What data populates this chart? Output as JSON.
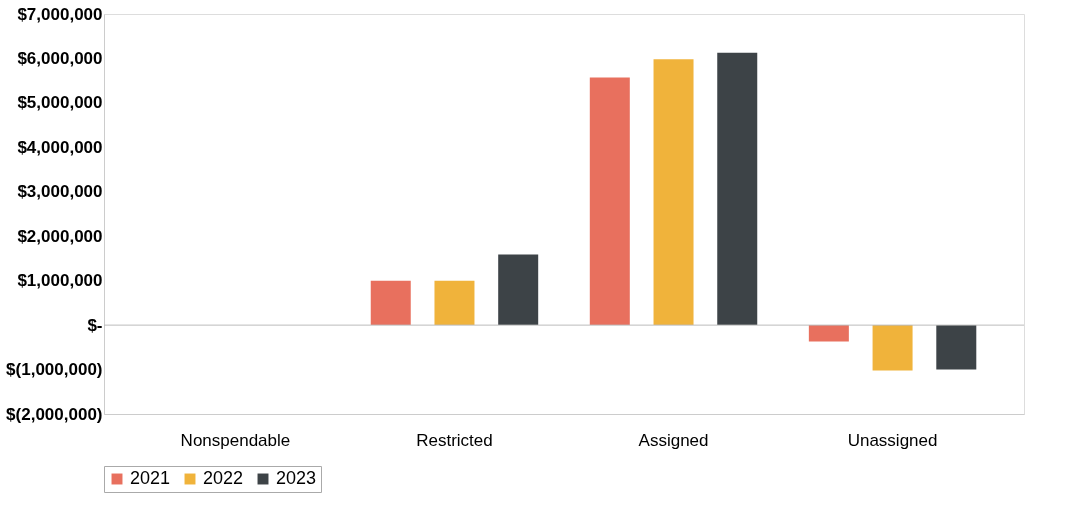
{
  "chart_data": {
    "type": "bar",
    "categories": [
      "Nonspendable",
      "Restricted",
      "Assigned",
      "Unassigned"
    ],
    "series": [
      {
        "name": "2021",
        "color": "#e8705e",
        "values": [
          0,
          1000000,
          5570000,
          -370000
        ]
      },
      {
        "name": "2022",
        "color": "#f0b33b",
        "values": [
          0,
          1000000,
          5980000,
          -1020000
        ]
      },
      {
        "name": "2023",
        "color": "#3d4347",
        "values": [
          0,
          1590000,
          6130000,
          -1000000
        ]
      }
    ],
    "ylim": [
      -2000000,
      7000000
    ],
    "yticks": [
      {
        "value": -2000000,
        "label": "$(2,000,000)"
      },
      {
        "value": -1000000,
        "label": "$(1,000,000)"
      },
      {
        "value": 0,
        "label": "$-"
      },
      {
        "value": 1000000,
        "label": "$1,000,000"
      },
      {
        "value": 2000000,
        "label": "$2,000,000"
      },
      {
        "value": 3000000,
        "label": "$3,000,000"
      },
      {
        "value": 4000000,
        "label": "$4,000,000"
      },
      {
        "value": 5000000,
        "label": "$5,000,000"
      },
      {
        "value": 6000000,
        "label": "$6,000,000"
      },
      {
        "value": 7000000,
        "label": "$7,000,000"
      }
    ],
    "ref_lines": [
      {
        "axis": "y",
        "value": 0,
        "color": "#bbbbbb"
      }
    ],
    "grid": false,
    "legend": "bottom"
  }
}
